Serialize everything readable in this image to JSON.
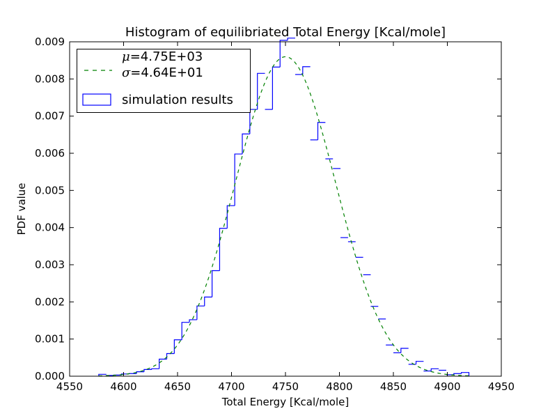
{
  "chart_data": {
    "type": "histogram",
    "title": "Histogram of equilibriated Total Energy [Kcal/mole]",
    "xlabel": "Total Energy [Kcal/mole]",
    "ylabel": "PDF value",
    "xlim": [
      4550,
      4950
    ],
    "ylim": [
      0,
      0.009
    ],
    "xticks": [
      "4550",
      "4600",
      "4650",
      "4700",
      "4750",
      "4800",
      "4850",
      "4900",
      "4950"
    ],
    "yticks": [
      "0.000",
      "0.001",
      "0.002",
      "0.003",
      "0.004",
      "0.005",
      "0.006",
      "0.007",
      "0.008",
      "0.009"
    ],
    "grid": false,
    "legend_placement": "top-left",
    "legend": {
      "fit": {
        "mu_label": "μ",
        "mu_text": "=4.75E+03",
        "sigma_label": "σ",
        "sigma_text": "=4.64E+01"
      },
      "hist": {
        "text": "simulation results"
      }
    },
    "fit_curve": {
      "type": "normal",
      "mu": 4750,
      "sigma": 46.4,
      "color": "#008000",
      "style": "dashed"
    },
    "histogram": {
      "color": "#0000ff",
      "bin_edges": [
        4577,
        4584,
        4591,
        4598,
        4605,
        4612,
        4619,
        4626,
        4633,
        4640,
        4647,
        4654,
        4661,
        4668,
        4675,
        4682,
        4689,
        4696,
        4703,
        4710,
        4717,
        4724,
        4731,
        4738,
        4745,
        4752,
        4759,
        4766,
        4773,
        4780,
        4787,
        4794,
        4801,
        4808,
        4815,
        4822,
        4829,
        4836,
        4843,
        4850,
        4857,
        4864,
        4871,
        4878,
        4885,
        4892,
        4899,
        4906,
        4913,
        4920
      ],
      "densities": [
        5e-05,
        2e-05,
        3e-05,
        6e-05,
        7e-05,
        0.00012,
        0.00018,
        0.0002,
        0.00046,
        0.00061,
        0.00098,
        0.00145,
        0.00152,
        0.00189,
        0.00213,
        0.00284,
        0.00398,
        0.00459,
        0.00598,
        0.00652,
        0.00718,
        0.00815,
        0.00718,
        0.00832,
        0.00904,
        0.0091,
        0.00812,
        0.00833,
        0.00636,
        0.00683,
        0.00585,
        0.00559,
        0.00373,
        0.00362,
        0.0032,
        0.00273,
        0.00188,
        0.00154,
        0.00084,
        0.00063,
        0.00075,
        0.00032,
        0.0004,
        0.00014,
        0.0002,
        0.00016,
        4e-05,
        7e-05,
        0.0001
      ]
    }
  }
}
